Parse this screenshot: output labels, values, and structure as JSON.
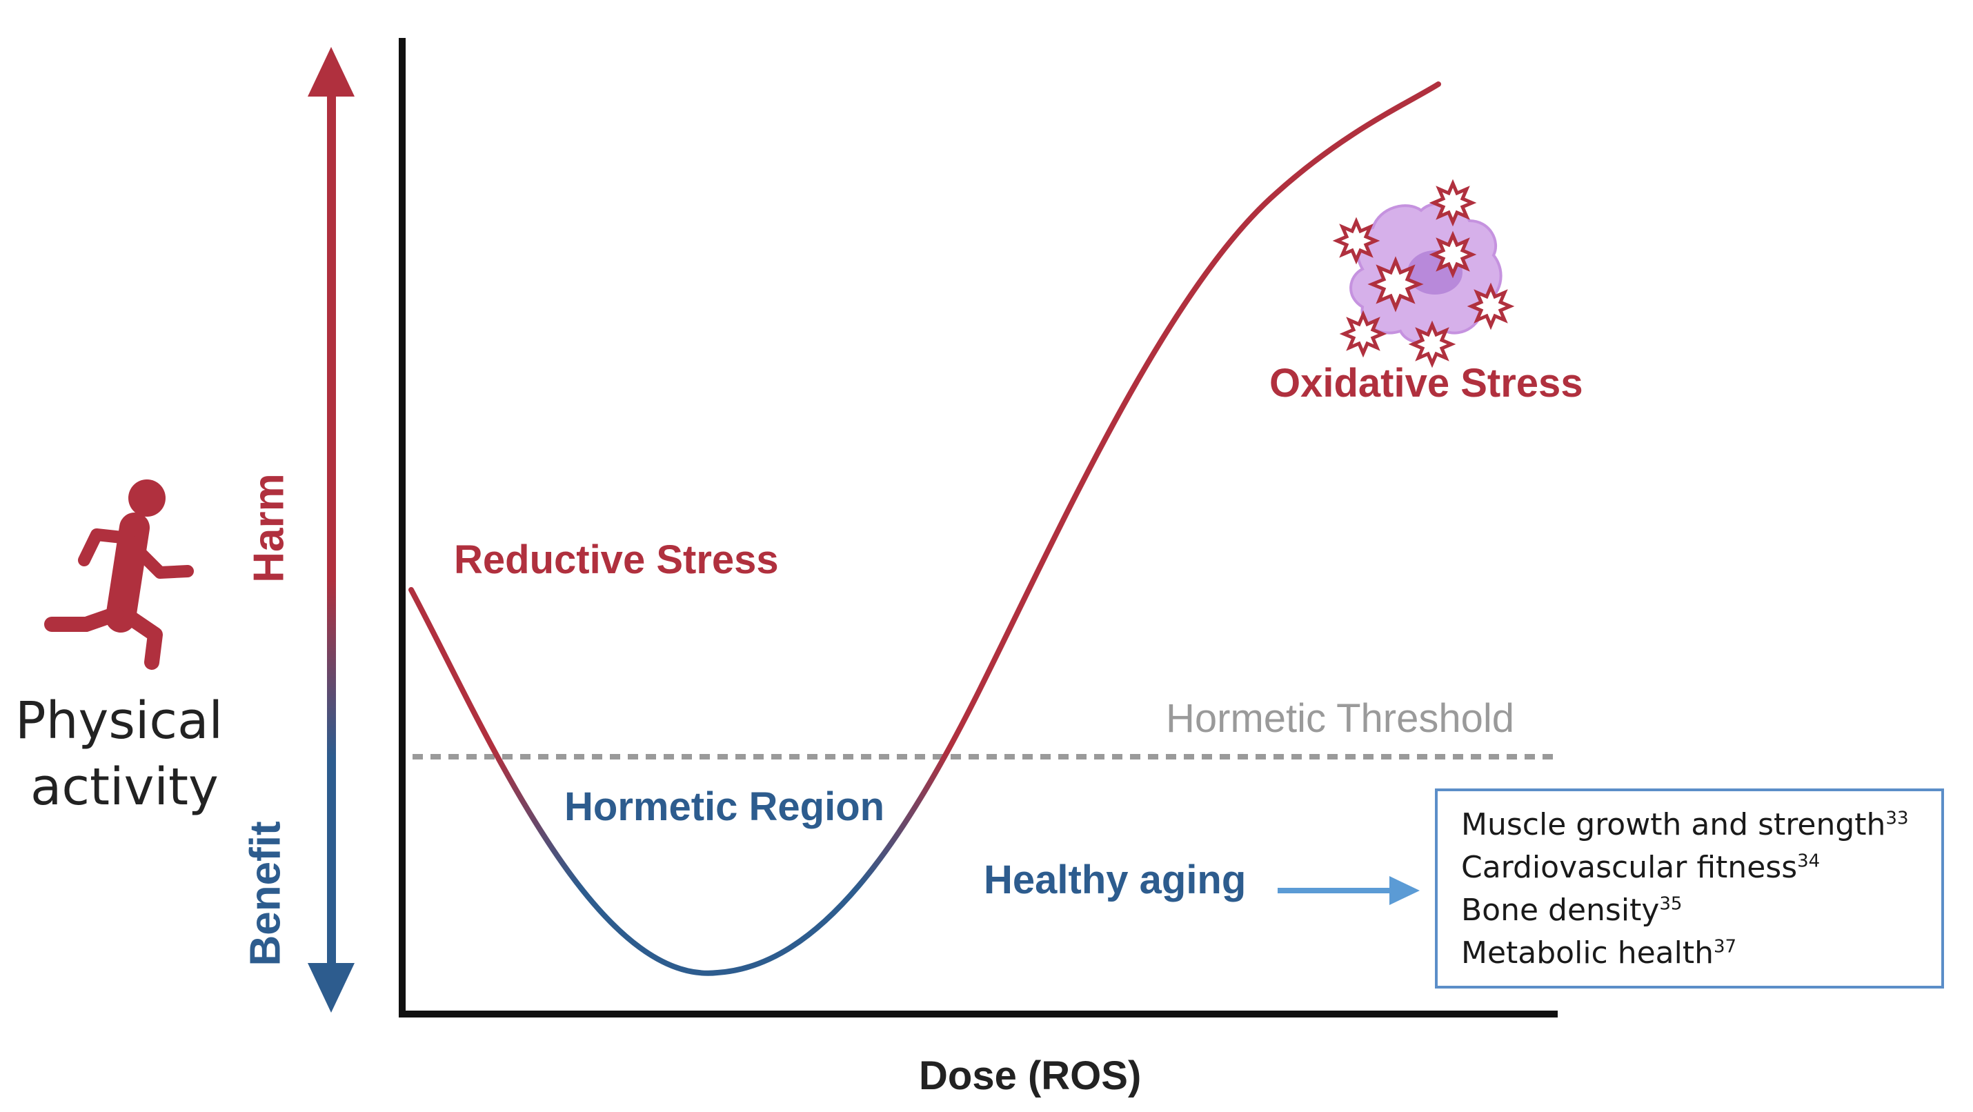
{
  "colors": {
    "harm": "#b0303e",
    "benefit": "#2d5c8e",
    "threshold": "#9a9a9a",
    "axis": "#111111",
    "box_border": "#5b8ec8",
    "arrow": "#5b9bd5",
    "cell": "#c9a3e0"
  },
  "left_panel": {
    "icon": "runner-icon",
    "title_line1": "Physical",
    "title_line2": "activity",
    "harm_label": "Harm",
    "benefit_label": "Benefit"
  },
  "labels": {
    "reductive_stress": "Reductive Stress",
    "oxidative_stress": "Oxidative Stress",
    "hormetic_threshold": "Hormetic Threshold",
    "hormetic_region": "Hormetic Region",
    "healthy_aging": "Healthy aging",
    "x_axis": "Dose (ROS)"
  },
  "cell_icon": "stressed-cell-icon",
  "benefits": [
    {
      "text": "Muscle growth and strength",
      "ref": "33"
    },
    {
      "text": "Cardiovascular fitness",
      "ref": "34"
    },
    {
      "text": "Bone density",
      "ref": "35"
    },
    {
      "text": "Metabolic health",
      "ref": "37"
    }
  ]
}
